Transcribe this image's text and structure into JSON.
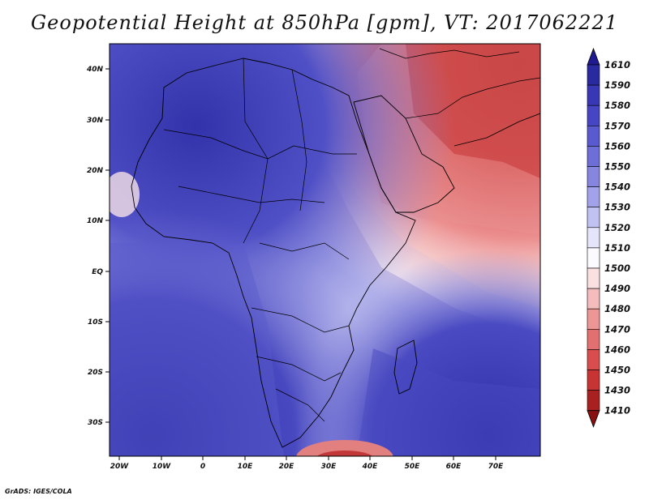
{
  "title": "Geopotential Height at 850hPa [gpm], VT: 2017062221",
  "credit": "GrADS: IGES/COLA",
  "map": {
    "lon_labels": [
      "20W",
      "10W",
      "0",
      "10E",
      "20E",
      "30E",
      "40E",
      "50E",
      "60E",
      "70E"
    ],
    "lat_labels": [
      "40N",
      "30N",
      "20N",
      "10N",
      "EQ",
      "10S",
      "20S",
      "30S"
    ]
  },
  "colorbar": {
    "labels": [
      "1610",
      "1590",
      "1580",
      "1570",
      "1560",
      "1550",
      "1540",
      "1530",
      "1520",
      "1510",
      "1500",
      "1490",
      "1480",
      "1470",
      "1460",
      "1450",
      "1430",
      "1410"
    ],
    "colors": [
      "#1f1a8f",
      "#2a2aa0",
      "#3838b4",
      "#4646c4",
      "#5a5ad0",
      "#6e6ed8",
      "#8686e0",
      "#a2a2ea",
      "#c2c2f2",
      "#e4e4fa",
      "#fbfbff",
      "#fae0e0",
      "#f4bcbc",
      "#ec9696",
      "#e27070",
      "#d84e4e",
      "#c83434",
      "#a82020",
      "#881010"
    ]
  }
}
